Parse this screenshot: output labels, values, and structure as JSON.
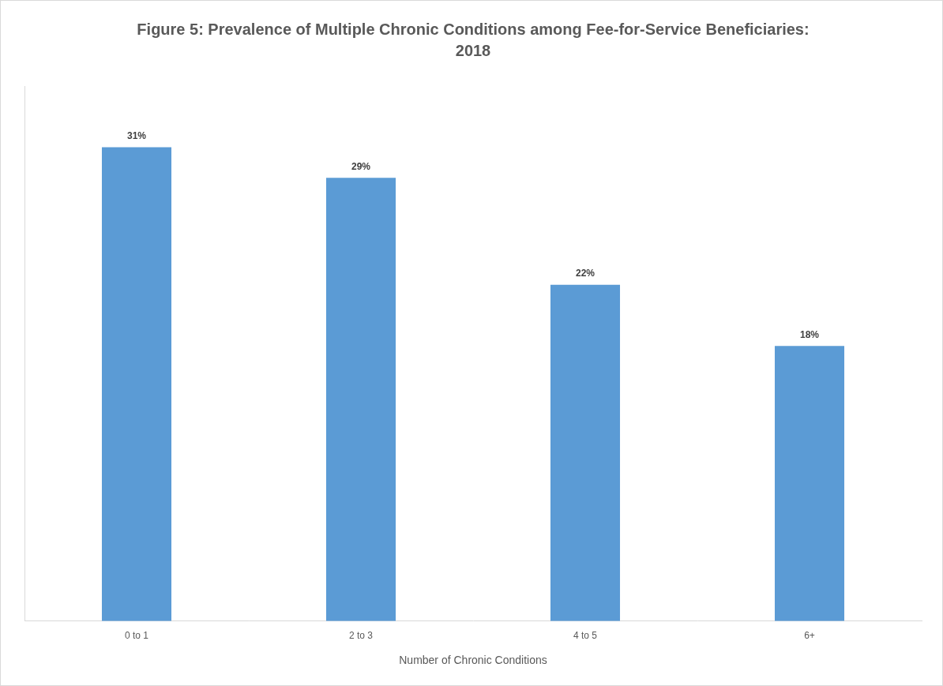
{
  "chart_data": {
    "type": "bar",
    "title": "Figure 5: Prevalence of Multiple Chronic Conditions among Fee-for-Service Beneficiaries: 2018",
    "x_label": "Number of Chronic Conditions",
    "categories": [
      "0 to 1",
      "2 to 3",
      "4 to 5",
      "6+"
    ],
    "values": [
      31,
      29,
      22,
      18
    ],
    "value_labels": [
      "31%",
      "29%",
      "22%",
      "18%"
    ],
    "data_labels": true,
    "color": "#5b9bd5",
    "ylim": [
      0,
      35
    ],
    "grid": false,
    "tick_labels": "x"
  }
}
